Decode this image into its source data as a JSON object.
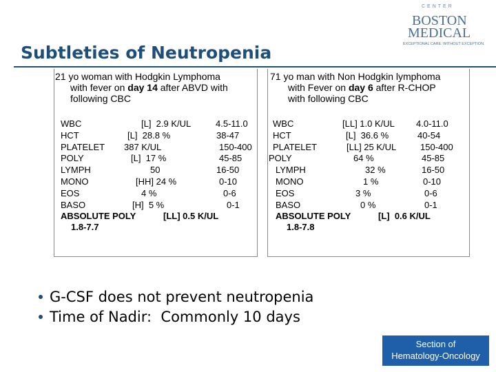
{
  "header": {
    "title": "Subtleties of Neutropenia",
    "logo": {
      "arc": "CENTER",
      "line1": "BOSTON",
      "line2": "MEDICAL",
      "tagline": "EXCEPTIONAL CARE. WITHOUT EXCEPTION."
    }
  },
  "cases": [
    {
      "heading": [
        [
          "21 yo woman with Hodgkin Lymphoma"
        ],
        [
          "with fever on ",
          "day 14",
          " after ABVD with"
        ],
        [
          "following CBC"
        ]
      ],
      "rows": [
        [
          "WBC",
          "[L]  2.9 K/UL",
          "4.5-11.0"
        ],
        [
          "HCT",
          "[L]  28.8 %",
          "38-47"
        ],
        [
          "PLATELET",
          "387 K/UL",
          "150-400"
        ],
        [
          "POLY",
          "[L]  17 %",
          "45-85"
        ],
        [
          "LYMPH",
          "50",
          "16-50"
        ],
        [
          "MONO",
          "[HH] 24 %",
          "0-10"
        ],
        [
          "EOS",
          "4 %",
          "0-6"
        ],
        [
          "BASO",
          "[H]  5 %",
          "0-1"
        ]
      ],
      "absolute": {
        "label": "ABSOLUTE POLY",
        "value": "[LL] 0.5 K/UL",
        "range": "1.8-7.7"
      }
    },
    {
      "heading": [
        [
          "71 yo man with Non Hodgkin lymphoma"
        ],
        [
          "with Fever on ",
          "day 6",
          " after R-CHOP"
        ],
        [
          "with following CBC"
        ]
      ],
      "rows": [
        [
          "WBC",
          "[LL] 1.0 K/UL",
          "4.0-11.0"
        ],
        [
          "HCT",
          "[L]  36.6 %",
          "40-54"
        ],
        [
          "PLATELET",
          "[LL] 25 K/UL",
          "150-400"
        ],
        [
          "POLY",
          "64 %",
          "45-85"
        ],
        [
          "LYMPH",
          "32 %",
          "16-50"
        ],
        [
          "MONO",
          "1 %",
          "0-10"
        ],
        [
          "EOS",
          "3 %",
          "0-6"
        ],
        [
          "BASO",
          "0 %",
          "0-1"
        ]
      ],
      "absolute": {
        "label": "ABSOLUTE POLY",
        "value": "[L]  0.6 K/UL",
        "range": "1.8-7.8"
      }
    }
  ],
  "bullets": [
    "G-CSF does not prevent neutropenia",
    "Time of Nadir:  Commonly 10 days"
  ],
  "footer": {
    "line1": "Section of",
    "line2": "Hematology-Oncology"
  }
}
